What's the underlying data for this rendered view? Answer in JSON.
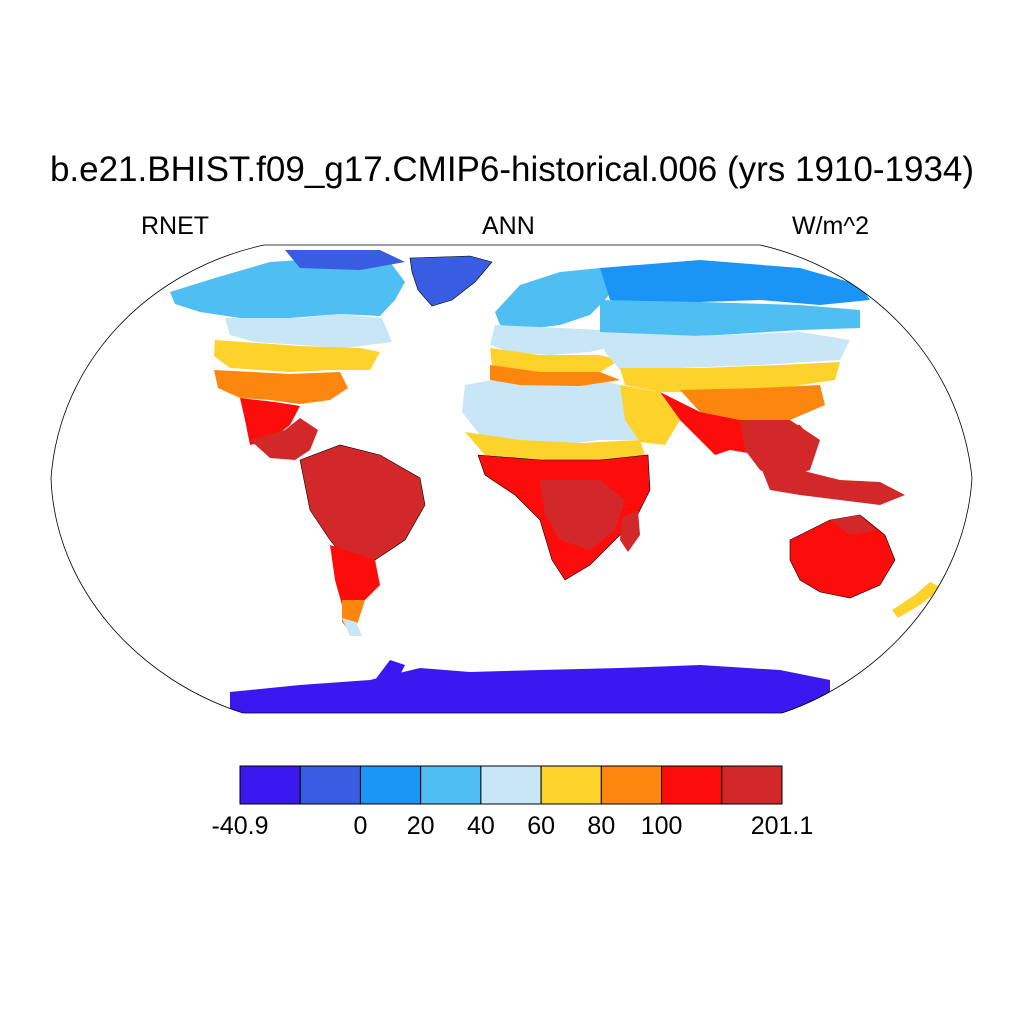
{
  "title": "b.e21.BHIST.f09_g17.CMIP6-historical.006 (yrs 1910-1934)",
  "subtitle_left": "RNET",
  "subtitle_center": "ANN",
  "subtitle_right": "W/m^2",
  "colorbar": {
    "colors": [
      "#3c18f0",
      "#385de2",
      "#1a95f5",
      "#4fbef2",
      "#c8e6f6",
      "#fdd22a",
      "#fc860e",
      "#fc0d0b",
      "#d2282a"
    ],
    "labels": [
      "-40.9",
      "0",
      "20",
      "40",
      "60",
      "80",
      "100",
      "201.1"
    ],
    "label_boundary_index": [
      0,
      2,
      3,
      4,
      5,
      6,
      7,
      9
    ]
  }
}
